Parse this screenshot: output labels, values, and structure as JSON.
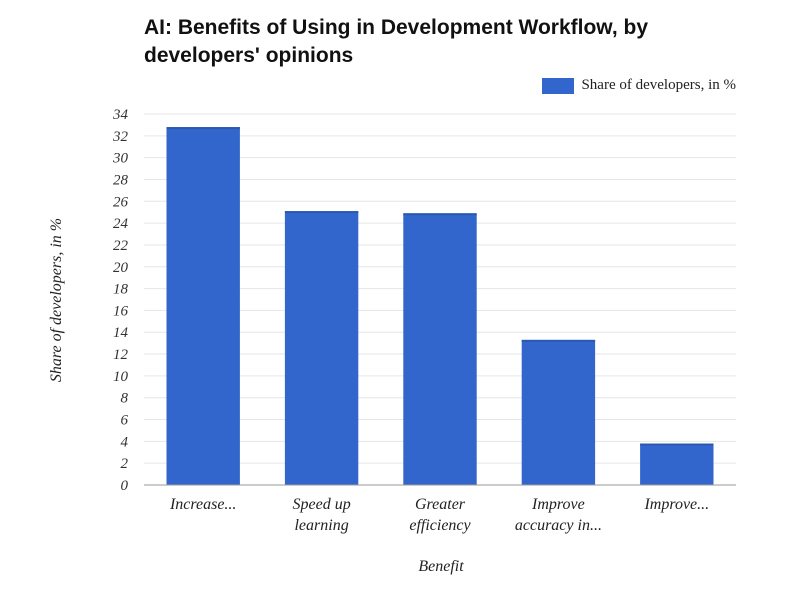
{
  "chart_data": {
    "type": "bar",
    "title": "AI: Benefits of Using in Development Workflow, by developers' opinions",
    "xlabel": "Benefit",
    "ylabel": "Share of developers, in %",
    "categories": [
      [
        "Increase..."
      ],
      [
        "Speed up",
        "learning"
      ],
      [
        "Greater",
        "efficiency"
      ],
      [
        "Improve",
        "accuracy in..."
      ],
      [
        "Improve..."
      ]
    ],
    "series": [
      {
        "name": "Share of developers, in %",
        "values": [
          32.8,
          25.1,
          24.9,
          13.3,
          3.8
        ],
        "color": "#3366cc"
      }
    ],
    "ylim": [
      0,
      34
    ],
    "yticks": [
      0,
      2,
      4,
      6,
      8,
      10,
      12,
      14,
      16,
      18,
      20,
      22,
      24,
      26,
      28,
      30,
      32,
      34
    ],
    "grid": true,
    "legend_position": "top-right"
  }
}
